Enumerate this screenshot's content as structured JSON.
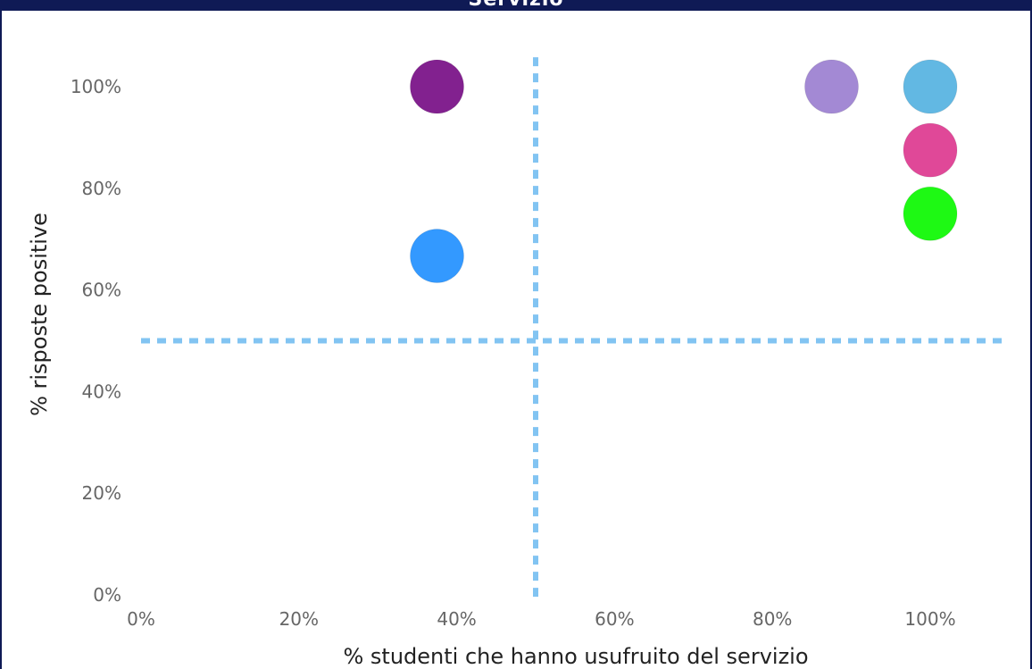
{
  "chart_data": {
    "type": "scatter",
    "title": "Servizio",
    "xlabel": "% studenti che hanno usufruito del servizio",
    "ylabel": "% risposte positive",
    "xlim": [
      0,
      110
    ],
    "ylim": [
      0,
      110
    ],
    "x_ticks": [
      "0%",
      "20%",
      "40%",
      "60%",
      "80%",
      "100%"
    ],
    "x_tick_values": [
      0,
      20,
      40,
      60,
      80,
      100
    ],
    "y_ticks": [
      "0%",
      "20%",
      "40%",
      "60%",
      "80%",
      "100%"
    ],
    "y_tick_values": [
      0,
      20,
      40,
      60,
      80,
      100
    ],
    "grid": false,
    "reference_lines": {
      "x": 50,
      "y": 50
    },
    "points": [
      {
        "x": 37.5,
        "y": 100,
        "color": "#82218f"
      },
      {
        "x": 37.5,
        "y": 66.7,
        "color": "#3399ff"
      },
      {
        "x": 87.5,
        "y": 100,
        "color": "#a389d4"
      },
      {
        "x": 100,
        "y": 100,
        "color": "#62b8e3"
      },
      {
        "x": 100,
        "y": 87.5,
        "color": "#e04898"
      },
      {
        "x": 100,
        "y": 75,
        "color": "#1ef914"
      }
    ]
  },
  "colors": {
    "title_bar": "#0f1a55",
    "reference_line": "#82c4f2"
  }
}
